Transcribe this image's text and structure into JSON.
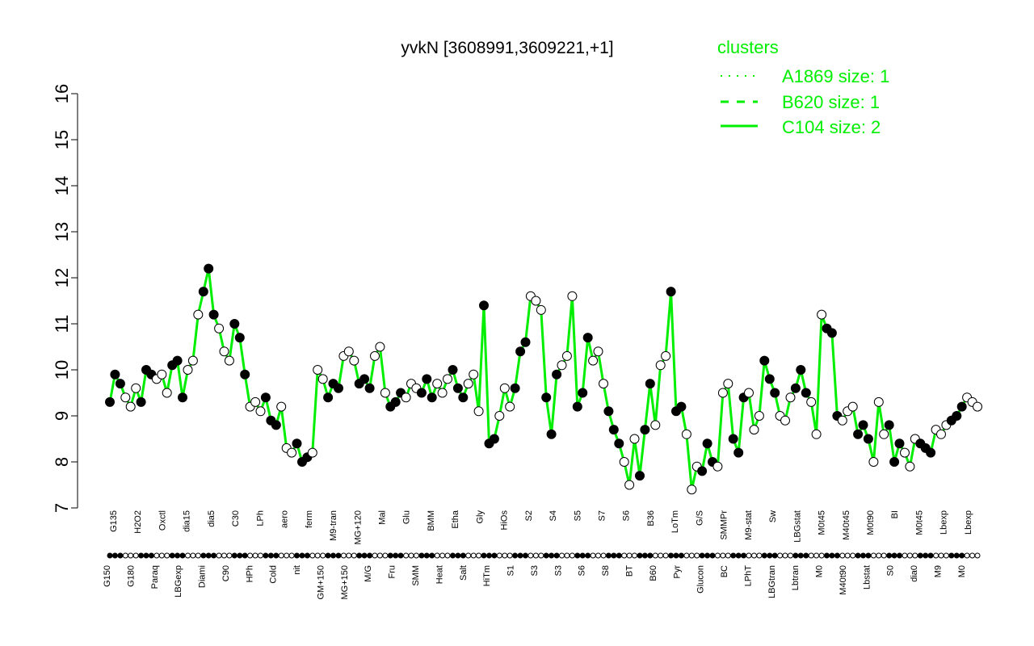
{
  "chart_data": {
    "type": "line",
    "title": "yvkN [3608991,3609221,+1]",
    "ylim": [
      7,
      16
    ],
    "yticks": [
      7,
      8,
      9,
      10,
      11,
      12,
      13,
      14,
      15,
      16
    ],
    "grid": false,
    "legend": {
      "placement": "top-right",
      "title": "clusters",
      "entries": [
        {
          "label": "A1869 size: 1",
          "style": "dotted"
        },
        {
          "label": "B620 size: 1",
          "style": "dashed"
        },
        {
          "label": "C104 size: 2",
          "style": "solid"
        }
      ]
    },
    "x_tick_labels_upper": [
      "G135",
      "H2O2",
      "Oxctl",
      "dia15",
      "dia5",
      "C30",
      "LPh",
      "aero",
      "ferm",
      "M9-tran",
      "MG+120",
      "Mal",
      "Glu",
      "BMM",
      "Etha",
      "Gly",
      "HiOs",
      "S2",
      "S4",
      "S5",
      "S7",
      "S6",
      "B36",
      "LoTm",
      "G/S",
      "SMMPr",
      "M9-stat",
      "Sw",
      "LBGstat",
      "M0t45",
      "M40t45",
      "M0t90",
      "BI",
      "M0t45",
      "Lbexp",
      "Lbexp"
    ],
    "x_tick_labels_lower": [
      "G150",
      "G180",
      "Paraq",
      "LBGexp",
      "Diami",
      "C90",
      "HPh",
      "Cold",
      "nit",
      "GM+150",
      "MG+150",
      "M/G",
      "Fru",
      "SMM",
      "Heat",
      "Salt",
      "HiTm",
      "S1",
      "S3",
      "S3",
      "S6",
      "S8",
      "BT",
      "B60",
      "Pyr",
      "Glucon",
      "BC",
      "LPhT",
      "LBGtran",
      "Lbtran",
      "M0",
      "M40t90",
      "Lbstat",
      "S0",
      "dia0",
      "M9",
      "M0"
    ],
    "series": [
      {
        "style": "solid",
        "values": [
          9.3,
          9.9,
          9.7,
          9.4,
          9.2,
          9.6,
          9.3,
          10.0,
          9.9,
          9.8,
          9.9,
          9.5,
          10.1,
          10.2,
          9.4,
          10.0,
          10.2,
          11.2,
          11.7,
          12.2,
          11.2,
          10.9,
          10.4,
          10.2,
          11.0,
          10.7,
          9.9,
          9.2,
          9.3,
          9.1,
          9.4,
          8.9,
          8.8,
          9.2,
          8.3,
          8.2,
          8.4,
          8.0,
          8.1,
          8.2,
          10.0,
          9.8,
          9.4,
          9.7,
          9.6,
          10.3,
          10.4,
          10.2,
          9.7,
          9.8,
          9.6,
          10.3,
          10.5,
          9.5,
          9.2,
          9.3,
          9.5,
          9.4,
          9.7,
          9.6,
          9.5,
          9.8,
          9.4,
          9.7,
          9.5,
          9.8,
          10.0,
          9.6,
          9.4,
          9.7,
          9.9,
          9.1,
          11.4,
          8.4,
          8.5,
          9.0,
          9.6,
          9.2,
          9.6,
          10.4,
          10.6,
          11.6,
          11.5,
          11.3,
          9.4,
          8.6,
          9.9,
          10.1,
          10.3,
          11.6,
          9.2,
          9.5,
          10.7,
          10.2,
          10.4,
          9.7,
          9.1,
          8.7,
          8.4,
          8.0,
          7.5,
          8.5,
          7.7,
          8.7,
          9.7,
          8.8,
          10.1,
          10.3,
          11.7,
          9.1,
          9.2,
          8.6,
          7.4,
          7.9,
          7.8,
          8.4,
          8.0,
          7.9,
          9.5,
          9.7,
          8.5,
          8.2,
          9.4,
          9.5,
          8.7,
          9.0,
          10.2,
          9.8,
          9.5,
          9.0,
          8.9,
          9.4,
          9.6,
          10.0,
          9.5,
          9.3,
          8.6,
          11.2,
          10.9,
          10.8,
          9.0,
          8.9,
          9.1,
          9.2,
          8.6,
          8.8,
          8.5,
          8.0,
          9.3,
          8.6,
          8.8,
          8.0,
          8.4,
          8.2,
          7.9,
          8.5,
          8.4,
          8.3,
          8.2,
          8.7,
          8.6,
          8.8,
          8.9,
          9.0,
          9.2,
          9.4,
          9.3,
          9.2
        ]
      }
    ],
    "points": [
      9.3,
      9.9,
      9.7,
      9.4,
      9.2,
      9.6,
      9.3,
      10.0,
      9.9,
      9.8,
      9.9,
      9.5,
      10.1,
      10.2,
      9.4,
      10.0,
      10.2,
      11.2,
      11.7,
      12.2,
      11.2,
      10.9,
      10.4,
      10.2,
      11.0,
      10.7,
      9.9,
      9.2,
      9.3,
      9.1,
      9.4,
      8.9,
      8.8,
      9.2,
      8.3,
      8.2,
      8.4,
      8.0,
      8.1,
      8.2,
      10.0,
      9.8,
      9.4,
      9.7,
      9.6,
      10.3,
      10.4,
      10.2,
      9.7,
      9.8,
      9.6,
      10.3,
      10.5,
      9.5,
      9.2,
      9.3,
      9.5,
      9.4,
      9.7,
      9.6,
      9.5,
      9.8,
      9.4,
      9.7,
      9.5,
      9.8,
      10.0,
      9.6,
      9.4,
      9.7,
      9.9,
      9.1,
      11.4,
      8.4,
      8.5,
      9.0,
      9.6,
      9.2,
      9.6,
      10.4,
      10.6,
      11.6,
      11.5,
      11.3,
      9.4,
      8.6,
      9.9,
      10.1,
      10.3,
      11.6,
      9.2,
      9.5,
      10.7,
      10.2,
      10.4,
      9.7,
      9.1,
      8.7,
      8.4,
      8.0,
      7.5,
      8.5,
      7.7,
      8.7,
      9.7,
      8.8,
      10.1,
      10.3,
      11.7,
      9.1,
      9.2,
      8.6,
      7.4,
      7.9,
      7.8,
      8.4,
      8.0,
      7.9,
      9.5,
      9.7,
      8.5,
      8.2,
      9.4,
      9.5,
      8.7,
      9.0,
      10.2,
      9.8,
      9.5,
      9.0,
      8.9,
      9.4,
      9.6,
      10.0,
      9.5,
      9.3,
      8.6,
      11.2,
      10.9,
      10.8,
      9.0,
      8.9,
      9.1,
      9.2,
      8.6,
      8.8,
      8.5,
      8.0,
      9.3,
      8.6,
      8.8,
      8.0,
      8.4,
      8.2,
      7.9,
      8.5,
      8.4,
      8.3,
      8.2,
      8.7,
      8.6,
      8.8,
      8.9,
      9.0,
      9.2,
      9.4,
      9.3,
      9.2
    ],
    "colors": {
      "line": "#00ee00",
      "legend_text": "#00ee00",
      "axis": "#000000"
    }
  }
}
